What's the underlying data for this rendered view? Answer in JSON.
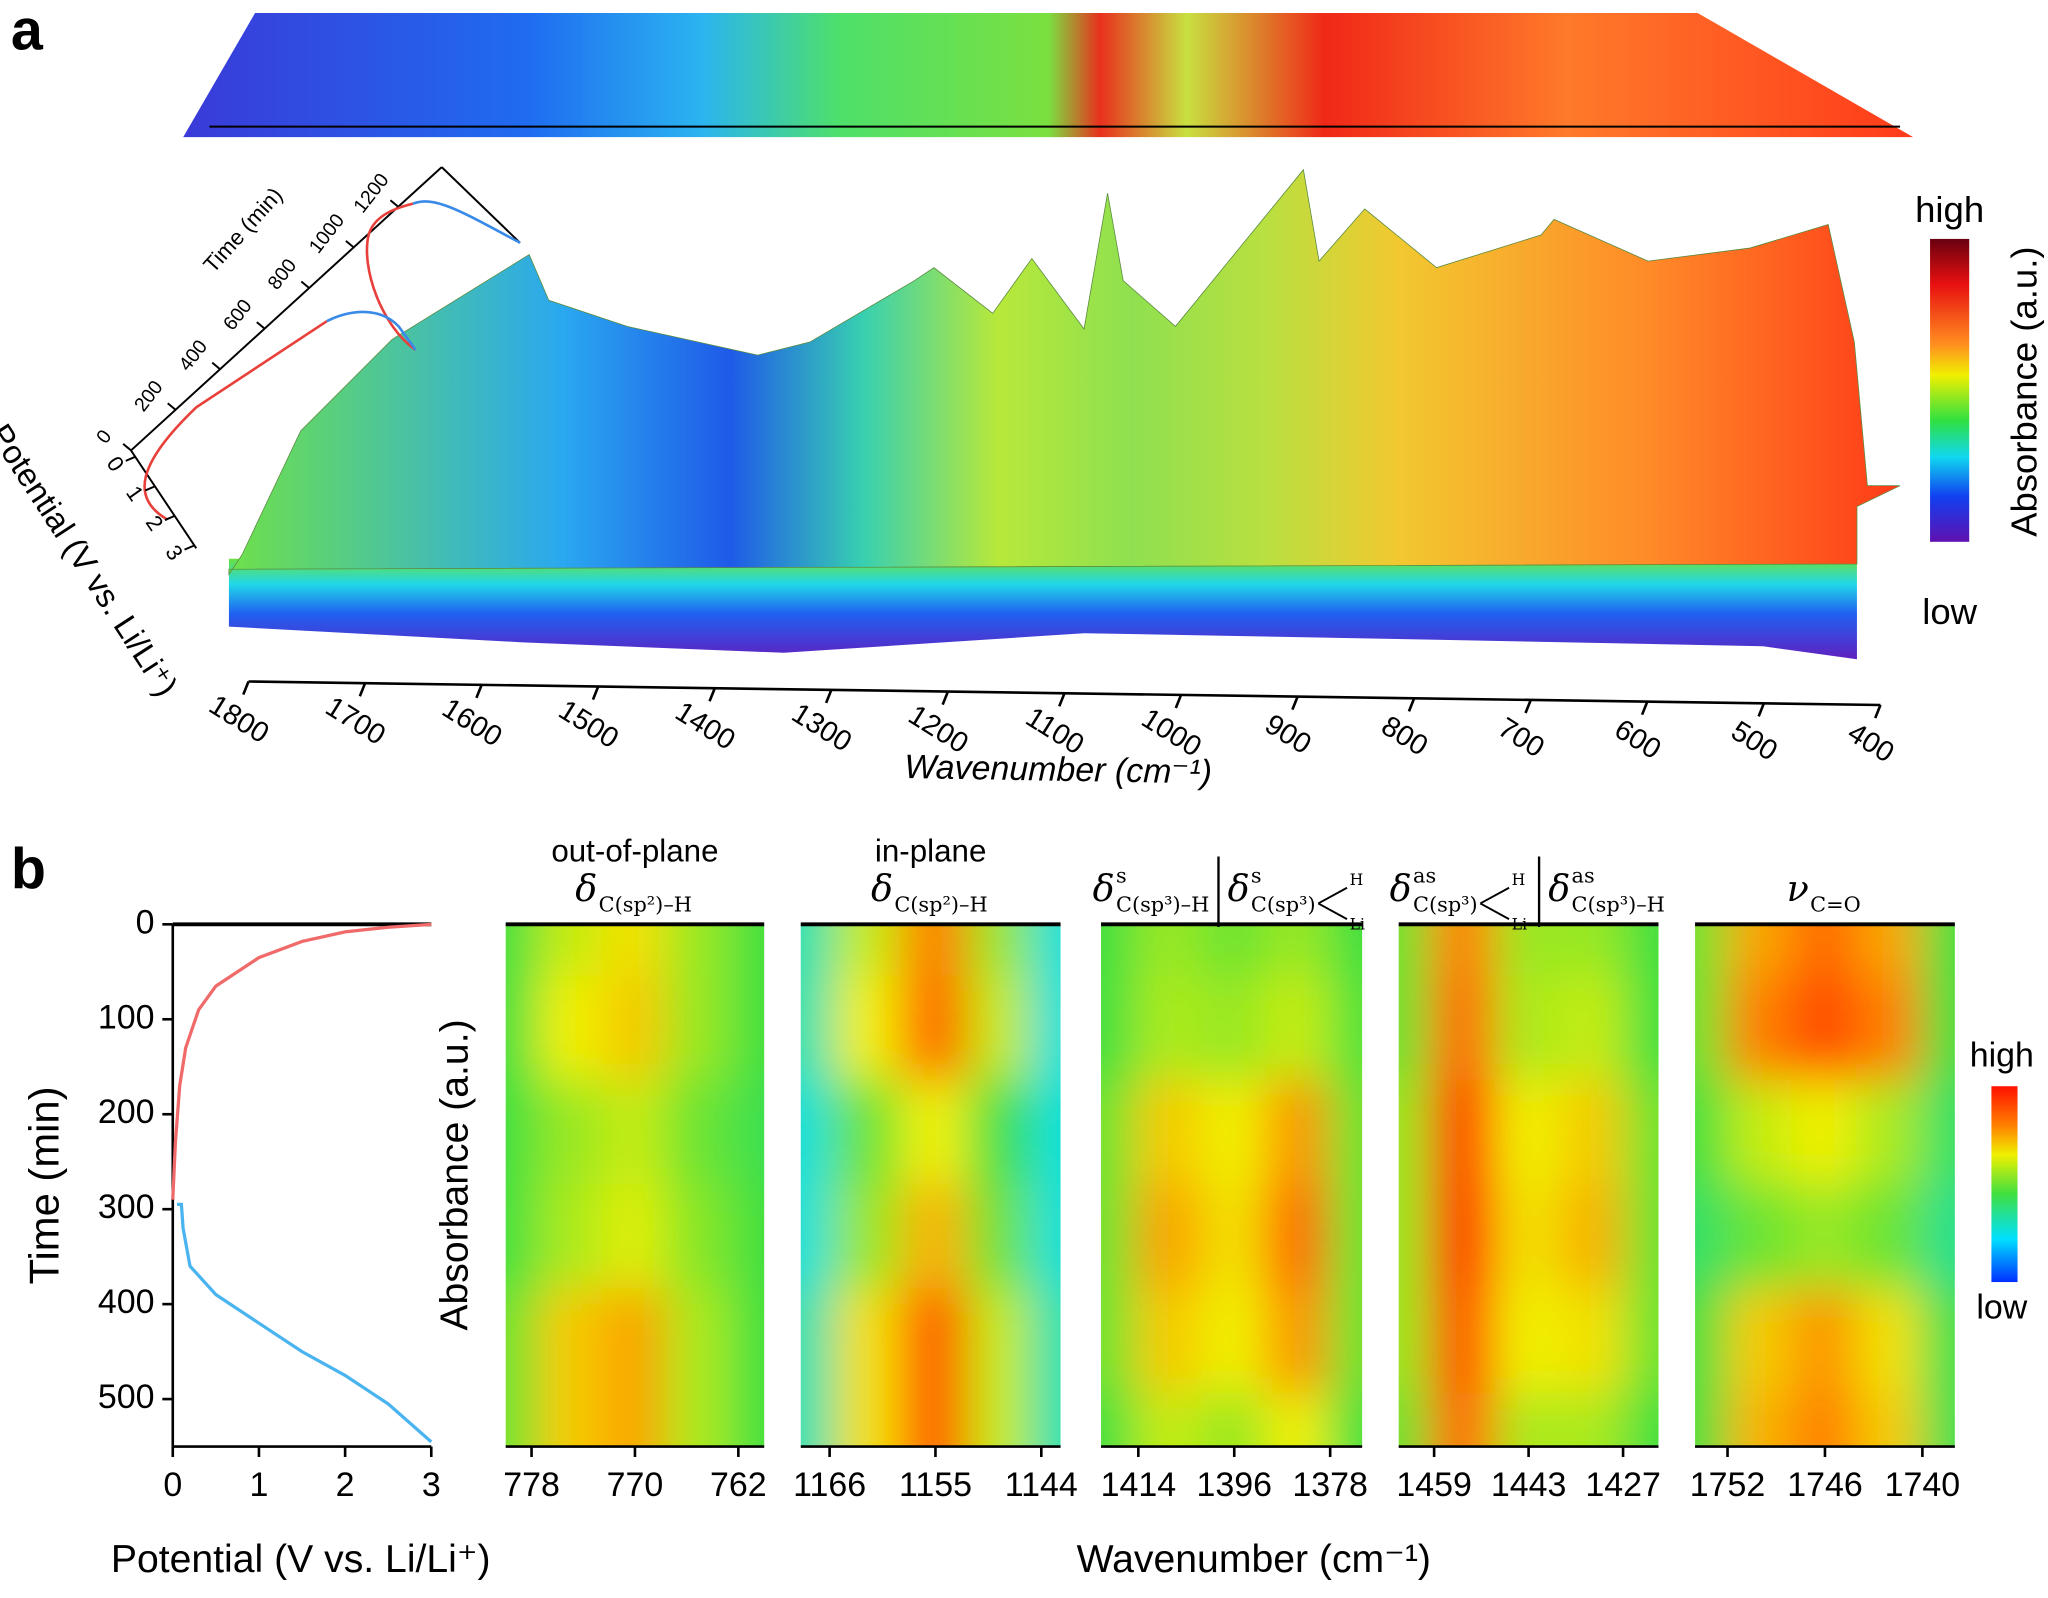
{
  "panel_labels": [
    "a",
    "b"
  ],
  "panel_b": {
    "heatmap_ylabel": "Absorbance (a.u.)",
    "heatmap_xlabel": "Wavenumber (cm⁻¹)",
    "colorbar": {
      "high": "high",
      "low": "low"
    }
  },
  "chart_data": [
    {
      "type": "surface3d",
      "xlabel": "Wavenumber (cm⁻¹)",
      "xlim": [
        1800,
        400
      ],
      "xticks": [
        1800,
        1700,
        1600,
        1500,
        1400,
        1300,
        1200,
        1100,
        1000,
        900,
        800,
        700,
        600,
        500,
        400
      ],
      "ylabel": "Time (min)",
      "ylim": [
        0,
        1200
      ],
      "yticks": [
        0,
        200,
        400,
        600,
        800,
        1000,
        1200
      ],
      "potential_label": "Potential (V vs. Li/Li⁺)",
      "potential_lim": [
        0,
        3
      ],
      "potential_ticks": [
        0,
        1,
        2,
        3
      ],
      "colorbar": {
        "label": "Absorbance (a.u.)",
        "high": "high",
        "low": "low"
      }
    },
    {
      "type": "line",
      "xlabel": "Potential (V vs. Li/Li⁺)",
      "ylabel": "Time (min)",
      "xlim": [
        0,
        3
      ],
      "xticks": [
        0,
        1,
        2,
        3
      ],
      "ylim": [
        0,
        550
      ],
      "y_inverted": true,
      "yticks": [
        0,
        100,
        200,
        300,
        400,
        500
      ],
      "series": [
        {
          "color": "#f06a6a",
          "x": [
            0.0,
            0.03,
            0.08,
            0.15,
            0.3,
            0.5,
            1.0,
            1.5,
            2.0,
            2.5,
            3.0
          ],
          "values": [
            290,
            230,
            170,
            130,
            90,
            65,
            35,
            18,
            8,
            3,
            0
          ]
        },
        {
          "color": "#4ab4f0",
          "x": [
            0.05,
            0.1,
            0.12,
            0.2,
            0.5,
            1.0,
            1.5,
            2.0,
            2.5,
            3.0
          ],
          "values": [
            295,
            295,
            320,
            360,
            390,
            420,
            450,
            475,
            505,
            545
          ]
        }
      ]
    },
    {
      "type": "heatmap",
      "header": "out-of-plane",
      "modes": [
        {
          "symbol": "δ",
          "subscript": "C(sp²)–H"
        }
      ],
      "xlim": [
        780,
        760
      ],
      "xticks": [
        778,
        770,
        762
      ],
      "ylim": [
        0,
        550
      ],
      "x": [
        780,
        775,
        770,
        765,
        760
      ],
      "y": [
        0,
        110,
        220,
        330,
        440,
        550
      ],
      "z": [
        [
          0.5,
          0.65,
          0.72,
          0.6,
          0.5
        ],
        [
          0.5,
          0.7,
          0.75,
          0.6,
          0.5
        ],
        [
          0.5,
          0.6,
          0.65,
          0.55,
          0.48
        ],
        [
          0.5,
          0.62,
          0.68,
          0.58,
          0.5
        ],
        [
          0.55,
          0.75,
          0.8,
          0.62,
          0.5
        ],
        [
          0.55,
          0.75,
          0.8,
          0.62,
          0.5
        ]
      ]
    },
    {
      "type": "heatmap",
      "header": "in-plane",
      "modes": [
        {
          "symbol": "δ",
          "subscript": "C(sp²)–H"
        }
      ],
      "xlim": [
        1169,
        1142
      ],
      "xticks": [
        1166,
        1155,
        1144
      ],
      "ylim": [
        0,
        550
      ],
      "x": [
        1169,
        1162,
        1155,
        1148,
        1142
      ],
      "y": [
        0,
        110,
        220,
        330,
        440,
        550
      ],
      "z": [
        [
          0.35,
          0.65,
          0.85,
          0.6,
          0.3
        ],
        [
          0.35,
          0.7,
          0.88,
          0.65,
          0.3
        ],
        [
          0.3,
          0.55,
          0.7,
          0.5,
          0.3
        ],
        [
          0.3,
          0.6,
          0.78,
          0.55,
          0.3
        ],
        [
          0.35,
          0.72,
          0.9,
          0.65,
          0.35
        ],
        [
          0.35,
          0.72,
          0.9,
          0.65,
          0.35
        ]
      ]
    },
    {
      "type": "heatmap",
      "modes": [
        {
          "symbol": "δ",
          "superscript": "s",
          "subscript": "C(sp³)–H"
        },
        {
          "symbol": "δ",
          "superscript": "s",
          "subscript": "C(sp³)",
          "bond_labels": [
            "H",
            "Li"
          ]
        }
      ],
      "xlim": [
        1421,
        1372
      ],
      "xticks": [
        1414,
        1396,
        1378
      ],
      "ylim": [
        0,
        550
      ],
      "x": [
        1421,
        1408,
        1396,
        1384,
        1372
      ],
      "y": [
        0,
        110,
        220,
        330,
        440,
        550
      ],
      "z": [
        [
          0.5,
          0.6,
          0.55,
          0.6,
          0.5
        ],
        [
          0.5,
          0.62,
          0.6,
          0.65,
          0.52
        ],
        [
          0.55,
          0.75,
          0.7,
          0.82,
          0.55
        ],
        [
          0.55,
          0.8,
          0.72,
          0.88,
          0.55
        ],
        [
          0.55,
          0.75,
          0.7,
          0.82,
          0.55
        ],
        [
          0.5,
          0.65,
          0.6,
          0.7,
          0.5
        ]
      ]
    },
    {
      "type": "heatmap",
      "modes": [
        {
          "symbol": "δ",
          "superscript": "as",
          "subscript": "C(sp³)",
          "bond_labels": [
            "H",
            "Li"
          ]
        },
        {
          "symbol": "δ",
          "superscript": "as",
          "subscript": "C(sp³)–H"
        }
      ],
      "xlim": [
        1465,
        1421
      ],
      "xticks": [
        1459,
        1443,
        1427
      ],
      "ylim": [
        0,
        550
      ],
      "x": [
        1465,
        1454,
        1443,
        1432,
        1421
      ],
      "y": [
        0,
        110,
        220,
        330,
        440,
        550
      ],
      "z": [
        [
          0.55,
          0.85,
          0.6,
          0.6,
          0.5
        ],
        [
          0.55,
          0.88,
          0.62,
          0.65,
          0.5
        ],
        [
          0.6,
          0.95,
          0.7,
          0.75,
          0.55
        ],
        [
          0.6,
          0.97,
          0.72,
          0.78,
          0.55
        ],
        [
          0.6,
          0.92,
          0.7,
          0.72,
          0.55
        ],
        [
          0.55,
          0.88,
          0.62,
          0.62,
          0.5
        ]
      ]
    },
    {
      "type": "heatmap",
      "modes": [
        {
          "symbol": "ν",
          "subscript": "C=O"
        }
      ],
      "xlim": [
        1754,
        1738
      ],
      "xticks": [
        1752,
        1746,
        1740
      ],
      "ylim": [
        0,
        550
      ],
      "x": [
        1754,
        1750,
        1746,
        1742,
        1738
      ],
      "y": [
        0,
        110,
        220,
        330,
        440,
        550
      ],
      "z": [
        [
          0.55,
          0.8,
          0.88,
          0.8,
          0.5
        ],
        [
          0.55,
          0.85,
          0.92,
          0.85,
          0.5
        ],
        [
          0.5,
          0.65,
          0.7,
          0.62,
          0.45
        ],
        [
          0.45,
          0.55,
          0.6,
          0.55,
          0.4
        ],
        [
          0.5,
          0.75,
          0.82,
          0.72,
          0.48
        ],
        [
          0.5,
          0.78,
          0.85,
          0.75,
          0.48
        ]
      ]
    }
  ]
}
